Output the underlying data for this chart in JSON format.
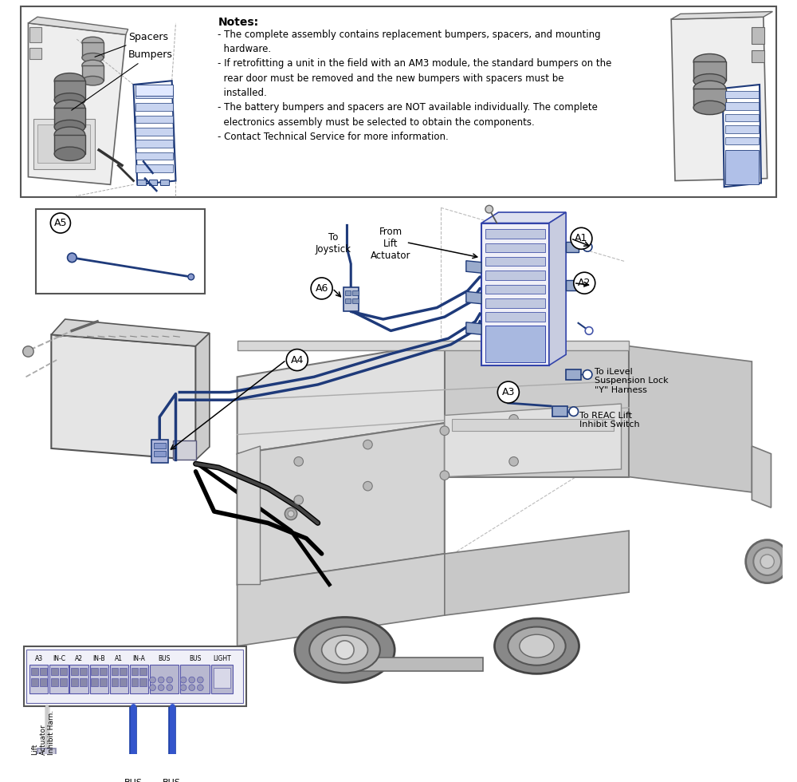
{
  "bg_color": "#ffffff",
  "blue": "#1e3a7a",
  "blue2": "#2244aa",
  "gray1": "#888888",
  "gray2": "#aaaaaa",
  "gray3": "#cccccc",
  "gray4": "#e8e8e8",
  "dark": "#333333",
  "black": "#000000",
  "notes_title": "Notes:",
  "notes_lines": [
    "- The complete assembly contains replacement bumpers, spacers, and mounting",
    "  hardware.",
    "- If retrofitting a unit in the field with an AM3 module, the standard bumpers on the",
    "  rear door must be removed and the new bumpers with spacers must be",
    "  installed.",
    "- The battery bumpers and spacers are NOT available individually. The complete",
    "  electronics assembly must be selected to obtain the components.",
    "- Contact Technical Service for more information."
  ],
  "connector_labels": [
    "A3",
    "IN-C",
    "A2",
    "IN-B",
    "A1",
    "IN-A",
    "BUS",
    "BUS",
    "LIGHT"
  ]
}
